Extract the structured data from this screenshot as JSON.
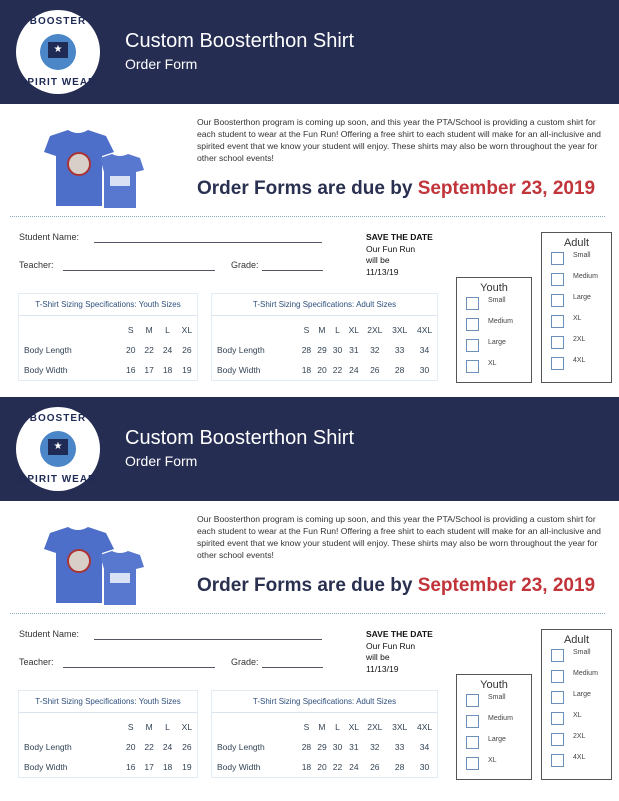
{
  "colors": {
    "header_bg": "#262d52",
    "due_date": "#c0343a",
    "shirt": "#4d6ec9"
  },
  "forms": [
    {
      "logo": {
        "top_text": "BOOSTER",
        "bottom_text": "SPIRIT WEAR"
      },
      "title": "Custom Boosterthon Shirt",
      "subtitle": "Order Form",
      "paragraph": "Our Boosterthon program is coming up soon, and this year the PTA/School is providing a custom shirt for each student to wear at the Fun Run! Offering a free shirt to each student will make for an all-inclusive and spirited event that we know your student will enjoy. These shirts may also be worn throughout the year for other school events!",
      "due_prefix": "Order Forms are due by ",
      "due_date": "September 23, 2019",
      "student_label": "Student Name:",
      "teacher_label": "Teacher:",
      "grade_label": "Grade:",
      "save": {
        "heading": "SAVE THE DATE",
        "l1": "Our Fun Run",
        "l2": "will be",
        "l3": "11/13/19"
      },
      "youth_box": {
        "title": "Youth",
        "options": [
          "Small",
          "Medium",
          "Large",
          "XL"
        ]
      },
      "adult_box": {
        "title": "Adult",
        "options": [
          "Small",
          "Medium",
          "Large",
          "XL",
          "2XL",
          "4XL"
        ]
      },
      "youth_table": {
        "title": "T-Shirt Sizing Specifications: Youth Sizes",
        "headers": [
          "",
          "S",
          "M",
          "L",
          "XL"
        ],
        "rows": [
          [
            "Body Length",
            "20",
            "22",
            "24",
            "26"
          ],
          [
            "Body Width",
            "16",
            "17",
            "18",
            "19"
          ]
        ]
      },
      "adult_table": {
        "title": "T-Shirt Sizing Specifications: Adult Sizes",
        "headers": [
          "",
          "S",
          "M",
          "L",
          "XL",
          "2XL",
          "3XL",
          "4XL"
        ],
        "rows": [
          [
            "Body Length",
            "28",
            "29",
            "30",
            "31",
            "32",
            "33",
            "34"
          ],
          [
            "Body Width",
            "18",
            "20",
            "22",
            "24",
            "26",
            "28",
            "30"
          ]
        ]
      }
    },
    {
      "logo": {
        "top_text": "BOOSTER",
        "bottom_text": "SPIRIT WEAR"
      },
      "title": "Custom Boosterthon Shirt",
      "subtitle": "Order Form",
      "paragraph": "Our Boosterthon program is coming up soon, and this year the PTA/School is providing a custom shirt for each student to wear at the Fun Run! Offering a free shirt to each student will make for an all-inclusive and spirited event that we know your student will enjoy. These shirts may also be worn throughout the year for other school events!",
      "due_prefix": "Order Forms are due by ",
      "due_date": "September 23, 2019",
      "student_label": "Student Name:",
      "teacher_label": "Teacher:",
      "grade_label": "Grade:",
      "save": {
        "heading": "SAVE THE DATE",
        "l1": "Our Fun Run",
        "l2": "will be",
        "l3": "11/13/19"
      },
      "youth_box": {
        "title": "Youth",
        "options": [
          "Small",
          "Medium",
          "Large",
          "XL"
        ]
      },
      "adult_box": {
        "title": "Adult",
        "options": [
          "Small",
          "Medium",
          "Large",
          "XL",
          "2XL",
          "4XL"
        ]
      },
      "youth_table": {
        "title": "T-Shirt Sizing Specifications: Youth Sizes",
        "headers": [
          "",
          "S",
          "M",
          "L",
          "XL"
        ],
        "rows": [
          [
            "Body Length",
            "20",
            "22",
            "24",
            "26"
          ],
          [
            "Body Width",
            "16",
            "17",
            "18",
            "19"
          ]
        ]
      },
      "adult_table": {
        "title": "T-Shirt Sizing Specifications: Adult Sizes",
        "headers": [
          "",
          "S",
          "M",
          "L",
          "XL",
          "2XL",
          "3XL",
          "4XL"
        ],
        "rows": [
          [
            "Body Length",
            "28",
            "29",
            "30",
            "31",
            "32",
            "33",
            "34"
          ],
          [
            "Body Width",
            "18",
            "20",
            "22",
            "24",
            "26",
            "28",
            "30"
          ]
        ]
      }
    }
  ]
}
